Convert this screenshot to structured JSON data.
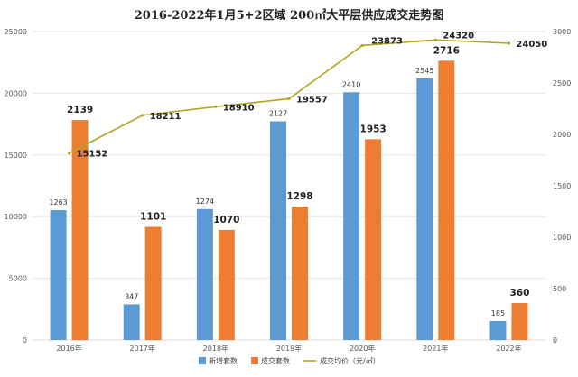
{
  "chart_data": {
    "type": "bar",
    "title": "2016-2022年1月5+2区域 200㎡大平层供应成交走势图",
    "categories": [
      "2016年",
      "2017年",
      "2018年",
      "2019年",
      "2020年",
      "2021年",
      "2022年"
    ],
    "series": [
      {
        "name": "新增套数",
        "type": "bar",
        "axis": "right",
        "color": "#5b9bd5",
        "values": [
          1263,
          347,
          1274,
          2127,
          2410,
          2545,
          185
        ],
        "labels": [
          "1263",
          "347",
          "1274",
          "2127",
          "2410",
          "2545",
          "185"
        ]
      },
      {
        "name": "成交套数",
        "type": "bar",
        "axis": "right",
        "color": "#ed7d31",
        "values": [
          2139,
          1101,
          1070,
          1298,
          1953,
          2716,
          360
        ],
        "labels": [
          "2139",
          "1101",
          "1070",
          "1298",
          "1953",
          "2716",
          "360"
        ]
      },
      {
        "name": "成交均价（元/㎡）",
        "type": "line",
        "axis": "left",
        "color": "#b5a322",
        "values": [
          15152,
          18211,
          18910,
          19557,
          23873,
          24320,
          24050
        ],
        "labels": [
          "15152",
          "18211",
          "18910",
          "19557",
          "23873",
          "24320",
          "24050"
        ]
      }
    ],
    "y_left": {
      "min": 0,
      "max": 25000,
      "ticks": [
        "0",
        "5000",
        "10000",
        "15000",
        "20000",
        "25000"
      ]
    },
    "y_right": {
      "min": 0,
      "max": 3000,
      "ticks": [
        "0",
        "500",
        "1000",
        "1500",
        "2000",
        "2500",
        "3000"
      ]
    },
    "grid": true,
    "legend_position": "bottom",
    "colors": {
      "axis": "#d9d9d9",
      "grid": "#e6e6e6"
    }
  }
}
